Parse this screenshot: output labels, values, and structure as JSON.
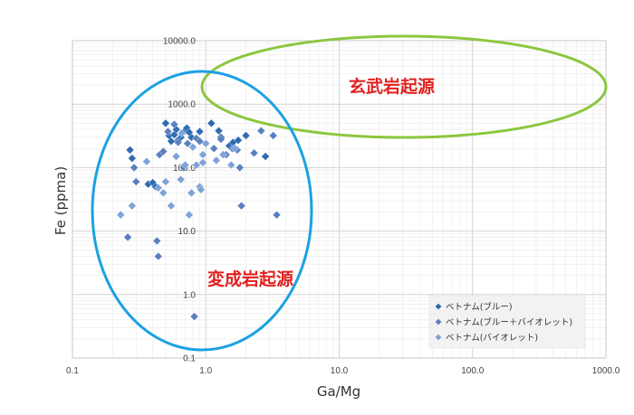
{
  "chart_data": {
    "type": "scatter",
    "xlabel": "Ga/Mg",
    "ylabel": "Fe (ppma)",
    "xscale": "log",
    "yscale": "log",
    "xlim": [
      0.1,
      1000
    ],
    "ylim": [
      0.1,
      10000
    ],
    "grid": true,
    "legend_position": "bottom-right",
    "x_ticks": [
      "0.1",
      "1.0",
      "10.0",
      "100.0",
      "1000.0"
    ],
    "y_ticks": [
      "0.1",
      "1.0",
      "10.0",
      "100.0",
      "1000.0",
      "10000.0"
    ],
    "regions": [
      {
        "label": "玄武岩起源",
        "color": "#8cc63f"
      },
      {
        "label": "変成岩起源",
        "color": "#1ba1e2"
      }
    ],
    "series": [
      {
        "name": "ベトナム(ブルー)",
        "color": "#2e6bb0",
        "points": [
          [
            0.27,
            190
          ],
          [
            0.28,
            140
          ],
          [
            0.37,
            55
          ],
          [
            0.4,
            58
          ],
          [
            0.42,
            50
          ],
          [
            0.5,
            500
          ],
          [
            0.53,
            320
          ],
          [
            0.55,
            260
          ],
          [
            0.58,
            330
          ],
          [
            0.6,
            400
          ],
          [
            0.65,
            300
          ],
          [
            0.7,
            380
          ],
          [
            0.72,
            420
          ],
          [
            0.78,
            300
          ],
          [
            0.75,
            360
          ],
          [
            0.9,
            370
          ],
          [
            1.1,
            500
          ],
          [
            1.25,
            380
          ],
          [
            1.3,
            300
          ],
          [
            1.5,
            220
          ],
          [
            1.6,
            250
          ],
          [
            1.75,
            270
          ],
          [
            2.0,
            320
          ],
          [
            2.8,
            150
          ],
          [
            0.62,
            270
          ]
        ]
      },
      {
        "name": "ベトナム(ブルー＋バイオレット)",
        "color": "#5b7fbf",
        "points": [
          [
            0.26,
            8
          ],
          [
            0.29,
            100
          ],
          [
            0.3,
            60
          ],
          [
            0.43,
            7
          ],
          [
            0.45,
            160
          ],
          [
            0.48,
            180
          ],
          [
            0.52,
            370
          ],
          [
            0.58,
            480
          ],
          [
            0.62,
            250
          ],
          [
            0.68,
            100
          ],
          [
            0.73,
            240
          ],
          [
            0.85,
            290
          ],
          [
            0.9,
            260
          ],
          [
            0.82,
            0.45
          ],
          [
            1.15,
            200
          ],
          [
            1.3,
            280
          ],
          [
            1.42,
            160
          ],
          [
            1.58,
            200
          ],
          [
            1.72,
            190
          ],
          [
            1.8,
            100
          ],
          [
            1.85,
            25
          ],
          [
            2.6,
            380
          ],
          [
            3.2,
            320
          ],
          [
            3.4,
            18
          ],
          [
            0.44,
            4
          ],
          [
            2.3,
            170
          ]
        ]
      },
      {
        "name": "ベトナム(バイオレット)",
        "color": "#7da3d9",
        "points": [
          [
            0.23,
            18
          ],
          [
            0.28,
            25
          ],
          [
            0.36,
            125
          ],
          [
            0.44,
            48
          ],
          [
            0.48,
            40
          ],
          [
            0.55,
            25
          ],
          [
            0.6,
            150
          ],
          [
            0.65,
            65
          ],
          [
            0.7,
            110
          ],
          [
            0.75,
            18
          ],
          [
            0.78,
            40
          ],
          [
            0.85,
            110
          ],
          [
            0.9,
            50
          ],
          [
            0.95,
            120
          ],
          [
            1.0,
            240
          ],
          [
            1.2,
            130
          ],
          [
            1.35,
            160
          ],
          [
            1.55,
            110
          ],
          [
            1.65,
            200
          ],
          [
            0.66,
            350
          ],
          [
            0.8,
            210
          ],
          [
            0.92,
            45
          ],
          [
            0.5,
            60
          ],
          [
            0.95,
            160
          ]
        ]
      }
    ]
  }
}
